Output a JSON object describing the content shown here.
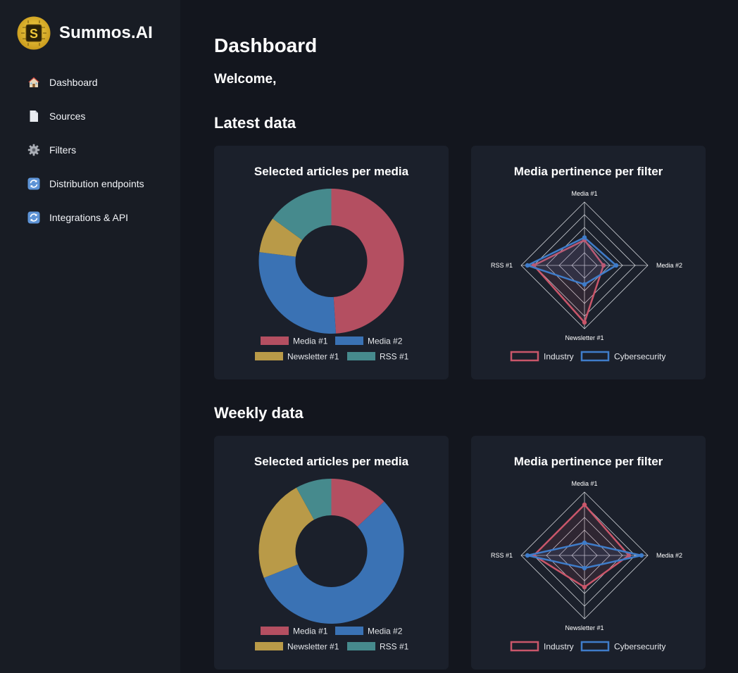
{
  "app": {
    "name": "Summos.AI",
    "logo_letter": "S"
  },
  "sidebar": {
    "items": [
      {
        "label": "Dashboard",
        "icon": "house-icon"
      },
      {
        "label": "Sources",
        "icon": "document-icon"
      },
      {
        "label": "Filters",
        "icon": "gear-icon"
      },
      {
        "label": "Distribution endpoints",
        "icon": "refresh-icon"
      },
      {
        "label": "Integrations & API",
        "icon": "refresh-icon"
      }
    ]
  },
  "main": {
    "title": "Dashboard",
    "welcome": "Welcome,",
    "sections": [
      {
        "title": "Latest data"
      },
      {
        "title": "Weekly data"
      }
    ]
  },
  "colors": {
    "media1": "#b44f61",
    "media2": "#3a72b4",
    "newsletter1": "#b99a48",
    "rss1": "#468a8d",
    "industry": "#c9566a",
    "cybersecurity": "#3f7cc9"
  },
  "chart_data": [
    {
      "type": "pie",
      "section": "Latest data",
      "title": "Selected articles per media",
      "categories": [
        "Media #1",
        "Media #2",
        "Newsletter #1",
        "RSS #1"
      ],
      "values": [
        49,
        28,
        8,
        15
      ]
    },
    {
      "type": "radar",
      "section": "Latest data",
      "title": "Media pertinence per filter",
      "axes": [
        "Media #1",
        "Media #2",
        "Newsletter #1",
        "RSS #1"
      ],
      "rmax": 5,
      "series": [
        {
          "name": "Industry",
          "values": [
            2,
            1.5,
            4.5,
            4
          ]
        },
        {
          "name": "Cybersecurity",
          "values": [
            2.2,
            2.5,
            1.5,
            4.5
          ]
        }
      ]
    },
    {
      "type": "pie",
      "section": "Weekly data",
      "title": "Selected articles per media",
      "categories": [
        "Media #1",
        "Media #2",
        "Newsletter #1",
        "RSS #1"
      ],
      "values": [
        13,
        56,
        23,
        8
      ]
    },
    {
      "type": "radar",
      "section": "Weekly data",
      "title": "Media pertinence per filter",
      "axes": [
        "Media #1",
        "Media #2",
        "Newsletter #1",
        "RSS #1"
      ],
      "rmax": 5,
      "series": [
        {
          "name": "Industry",
          "values": [
            4,
            3.5,
            2.5,
            4
          ]
        },
        {
          "name": "Cybersecurity",
          "values": [
            1,
            4.5,
            1,
            4.5
          ]
        }
      ]
    }
  ]
}
